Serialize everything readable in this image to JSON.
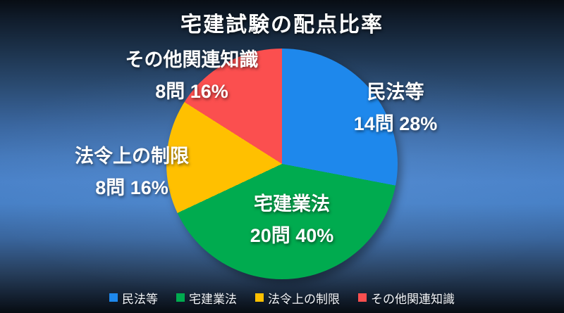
{
  "page": {
    "title": "宅建試験の配点比率"
  },
  "chart_data": {
    "type": "pie",
    "title": "宅建試験の配点比率",
    "categories": [
      "民法等",
      "宅建業法",
      "法令上の制限",
      "その他関連知識"
    ],
    "values": [
      28,
      40,
      16,
      16
    ],
    "questions": [
      "14問",
      "20問",
      "8問",
      "8問"
    ],
    "unit": "%",
    "colors": [
      "#1E88EC",
      "#00AB4F",
      "#FFC000",
      "#FB4F4F"
    ],
    "start_angle_deg": 0,
    "direction": "clockwise",
    "legend_position": "bottom",
    "background_gradient": [
      "#080d14",
      "#4a82c9",
      "#070c12"
    ]
  },
  "slice_labels": [
    {
      "name": "民法等",
      "line1": "民法等",
      "line2": "14問 28%"
    },
    {
      "name": "宅建業法",
      "line1": "宅建業法",
      "line2": "20問 40%"
    },
    {
      "name": "法令上の制限",
      "line1": "法令上の制限",
      "line2": "8問 16%"
    },
    {
      "name": "その他関連知識",
      "line1": "その他関連知識",
      "line2": "8問 16%"
    }
  ],
  "legend": {
    "items": [
      {
        "label": "民法等",
        "color": "#1E88EC"
      },
      {
        "label": "宅建業法",
        "color": "#00AB4F"
      },
      {
        "label": "法令上の制限",
        "color": "#FFC000"
      },
      {
        "label": "その他関連知識",
        "color": "#FB4F4F"
      }
    ]
  }
}
